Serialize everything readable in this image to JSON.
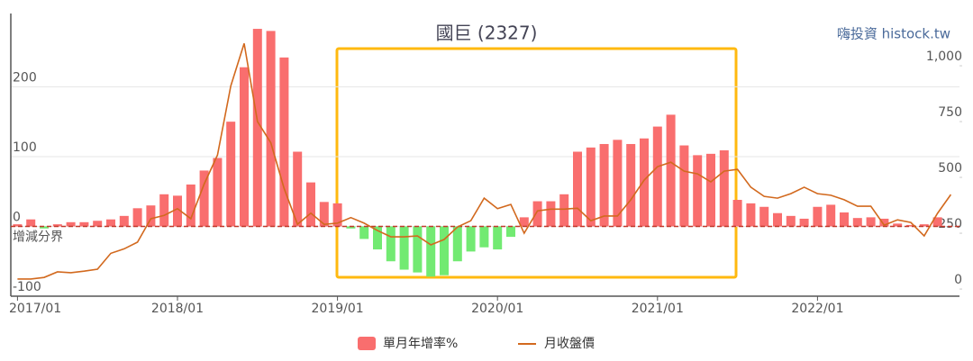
{
  "chart_data": {
    "type": "bar-line",
    "title": "國巨 (2327)",
    "source": "嗨投資 histock.tw",
    "zero_label": "增減分界",
    "categories": [
      "2017/01",
      null,
      null,
      null,
      null,
      null,
      null,
      null,
      null,
      null,
      null,
      null,
      "2018/01",
      null,
      null,
      null,
      null,
      null,
      null,
      null,
      null,
      null,
      null,
      null,
      "2019/01",
      null,
      null,
      null,
      null,
      null,
      null,
      null,
      null,
      null,
      null,
      null,
      "2020/01",
      null,
      null,
      null,
      null,
      null,
      null,
      null,
      null,
      null,
      null,
      null,
      "2021/01",
      null,
      null,
      null,
      null,
      null,
      null,
      null,
      null,
      null,
      null,
      null,
      "2022/01",
      null,
      null,
      null,
      null,
      null,
      null,
      null,
      null,
      null,
      null
    ],
    "series": [
      {
        "name": "單月年增率%",
        "color": "#f96e6e",
        "negative_color": "#72ea72",
        "axis": "y",
        "values": [
          3,
          10,
          -3,
          3,
          6,
          6,
          8,
          10,
          15,
          26,
          30,
          46,
          44,
          60,
          80,
          98,
          150,
          228,
          283,
          280,
          242,
          107,
          63,
          35,
          33,
          -3,
          -18,
          -33,
          -50,
          -62,
          -66,
          -72,
          -70,
          -50,
          -36,
          -30,
          -33,
          -15,
          13,
          36,
          36,
          46,
          107,
          113,
          118,
          124,
          118,
          126,
          143,
          160,
          116,
          102,
          104,
          109,
          38,
          33,
          28,
          19,
          15,
          11,
          28,
          31,
          20,
          12,
          13,
          11,
          4,
          2,
          3,
          13,
          null
        ]
      },
      {
        "name": "月收盤價",
        "color": "#d2691e",
        "axis": "y2",
        "values": [
          45,
          45,
          52,
          77,
          73,
          80,
          89,
          160,
          180,
          210,
          315,
          330,
          360,
          315,
          470,
          600,
          910,
          1100,
          750,
          655,
          450,
          290,
          340,
          290,
          295,
          320,
          295,
          262,
          234,
          234,
          238,
          198,
          222,
          278,
          306,
          407,
          360,
          379,
          250,
          350,
          358,
          358,
          362,
          306,
          327,
          327,
          400,
          488,
          548,
          568,
          528,
          516,
          480,
          528,
          536,
          456,
          415,
          407,
          427,
          456,
          427,
          420,
          400,
          371,
          371,
          286,
          310,
          298,
          238,
          339,
          423
        ]
      }
    ],
    "ylim": [
      -100,
      305
    ],
    "yticks": [
      -100,
      0,
      100,
      200
    ],
    "y2lim": [
      -32,
      1234
    ],
    "y2ticks": [
      0,
      250,
      500,
      750,
      {
        "value": 1000,
        "label": "1,000"
      }
    ],
    "grid": true
  }
}
